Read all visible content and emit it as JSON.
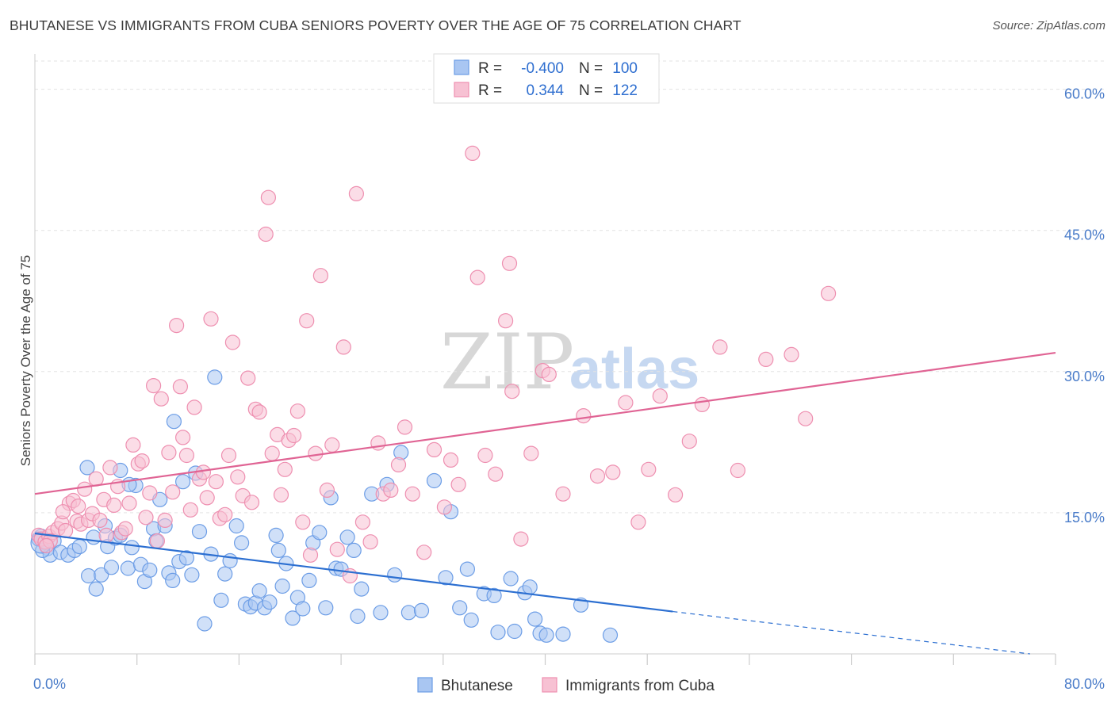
{
  "header": {
    "title": "BHUTANESE VS IMMIGRANTS FROM CUBA SENIORS POVERTY OVER THE AGE OF 75 CORRELATION CHART",
    "source": "Source: ZipAtlas.com"
  },
  "watermark": {
    "zip": "ZIP",
    "atlas": "atlas"
  },
  "chart_data": {
    "type": "scatter",
    "title": "BHUTANESE VS IMMIGRANTS FROM CUBA SENIORS POVERTY OVER THE AGE OF 75 CORRELATION CHART",
    "ylabel": "Seniors Poverty Over the Age of 75",
    "xlim": [
      0,
      80
    ],
    "ylim": [
      0,
      63
    ],
    "x_tick_labels": [
      {
        "value": 0,
        "label": "0.0%"
      },
      {
        "value": 80,
        "label": "80.0%"
      }
    ],
    "y_tick_labels": [
      {
        "value": 15,
        "label": "15.0%"
      },
      {
        "value": 30,
        "label": "30.0%"
      },
      {
        "value": 45,
        "label": "45.0%"
      },
      {
        "value": 60,
        "label": "60.0%"
      }
    ],
    "grid": "horizontal dashed",
    "legend": {
      "placement": "top-center",
      "entries": [
        {
          "r_label": "R =",
          "r_value": "-0.400",
          "n_label": "N =",
          "n_value": "100"
        },
        {
          "r_label": "R =",
          "r_value": "0.344",
          "n_label": "N =",
          "n_value": "122"
        }
      ]
    },
    "bottom_legend": [
      "Bhutanese",
      "Immigrants from Cuba"
    ],
    "series": [
      {
        "name": "Bhutanese",
        "color": "#6c9de6",
        "fill": "#a9c6f2",
        "line_color": "#2c6fd1",
        "trend": {
          "x0": 0,
          "y0": 12.8,
          "x1": 50,
          "y1": 4.5,
          "dash_to_x": 78,
          "dash_to_y": 0
        },
        "points": [
          [
            0.5,
            12.5
          ],
          [
            0.8,
            11.8
          ],
          [
            1.0,
            11.2
          ],
          [
            1.2,
            10.5
          ],
          [
            1.5,
            12.0
          ],
          [
            0.3,
            12.2
          ],
          [
            0.6,
            11.0
          ],
          [
            2.0,
            10.8
          ],
          [
            2.6,
            10.5
          ],
          [
            3.1,
            11.0
          ],
          [
            3.5,
            11.4
          ],
          [
            4.2,
            8.3
          ],
          [
            4.6,
            12.4
          ],
          [
            4.8,
            6.9
          ],
          [
            5.2,
            8.4
          ],
          [
            5.7,
            11.4
          ],
          [
            5.5,
            13.6
          ],
          [
            6.0,
            9.2
          ],
          [
            6.3,
            12.3
          ],
          [
            6.7,
            12.6
          ],
          [
            7.3,
            9.1
          ],
          [
            7.6,
            11.3
          ],
          [
            7.9,
            17.9
          ],
          [
            8.3,
            9.5
          ],
          [
            8.6,
            7.7
          ],
          [
            9.0,
            8.9
          ],
          [
            9.3,
            13.3
          ],
          [
            9.5,
            12.0
          ],
          [
            9.8,
            16.4
          ],
          [
            10.2,
            13.6
          ],
          [
            10.5,
            8.6
          ],
          [
            10.8,
            7.8
          ],
          [
            11.3,
            9.8
          ],
          [
            11.6,
            18.3
          ],
          [
            11.9,
            10.2
          ],
          [
            12.3,
            8.4
          ],
          [
            12.6,
            19.2
          ],
          [
            12.9,
            13.0
          ],
          [
            13.3,
            3.2
          ],
          [
            13.8,
            10.6
          ],
          [
            14.1,
            29.4
          ],
          [
            14.6,
            5.7
          ],
          [
            14.9,
            8.5
          ],
          [
            15.3,
            9.9
          ],
          [
            15.8,
            13.6
          ],
          [
            16.2,
            11.8
          ],
          [
            16.5,
            5.3
          ],
          [
            16.9,
            5.0
          ],
          [
            17.3,
            5.4
          ],
          [
            17.6,
            6.7
          ],
          [
            18.0,
            4.9
          ],
          [
            18.4,
            5.5
          ],
          [
            18.9,
            12.6
          ],
          [
            19.1,
            11.0
          ],
          [
            19.4,
            7.2
          ],
          [
            19.7,
            9.6
          ],
          [
            20.2,
            3.8
          ],
          [
            20.6,
            6.0
          ],
          [
            21.0,
            4.8
          ],
          [
            21.5,
            7.8
          ],
          [
            21.8,
            11.8
          ],
          [
            22.3,
            12.9
          ],
          [
            22.8,
            4.9
          ],
          [
            23.2,
            16.6
          ],
          [
            23.6,
            9.1
          ],
          [
            24.0,
            9.0
          ],
          [
            24.5,
            12.4
          ],
          [
            25.0,
            11.0
          ],
          [
            25.3,
            4.0
          ],
          [
            25.6,
            6.9
          ],
          [
            26.4,
            17.0
          ],
          [
            27.1,
            4.4
          ],
          [
            27.6,
            18.0
          ],
          [
            28.2,
            8.4
          ],
          [
            28.7,
            21.4
          ],
          [
            29.3,
            4.4
          ],
          [
            30.3,
            4.6
          ],
          [
            31.3,
            18.4
          ],
          [
            32.2,
            8.1
          ],
          [
            32.6,
            15.1
          ],
          [
            33.3,
            4.9
          ],
          [
            33.9,
            9.0
          ],
          [
            34.2,
            3.6
          ],
          [
            35.2,
            6.4
          ],
          [
            36.0,
            6.2
          ],
          [
            36.3,
            2.3
          ],
          [
            37.3,
            8.0
          ],
          [
            37.6,
            2.4
          ],
          [
            38.4,
            6.5
          ],
          [
            38.8,
            7.1
          ],
          [
            39.2,
            3.7
          ],
          [
            39.6,
            2.2
          ],
          [
            40.1,
            2.0
          ],
          [
            41.4,
            2.1
          ],
          [
            42.8,
            5.2
          ],
          [
            45.1,
            2.0
          ],
          [
            6.7,
            19.5
          ],
          [
            10.9,
            24.7
          ],
          [
            4.1,
            19.8
          ],
          [
            7.4,
            18.0
          ]
        ]
      },
      {
        "name": "Immigrants from Cuba",
        "color": "#ee8fb0",
        "fill": "#f7c1d3",
        "line_color": "#e06494",
        "trend": {
          "x0": 0,
          "y0": 17.0,
          "x1": 80,
          "y1": 32.0
        },
        "points": [
          [
            0.3,
            12.6
          ],
          [
            0.5,
            12.2
          ],
          [
            0.8,
            11.9
          ],
          [
            1.1,
            12.5
          ],
          [
            1.4,
            12.9
          ],
          [
            1.8,
            13.3
          ],
          [
            2.1,
            13.9
          ],
          [
            2.4,
            13.1
          ],
          [
            2.7,
            16.0
          ],
          [
            3.0,
            16.3
          ],
          [
            3.3,
            14.1
          ],
          [
            3.6,
            13.8
          ],
          [
            3.9,
            17.5
          ],
          [
            4.2,
            14.2
          ],
          [
            4.5,
            14.9
          ],
          [
            4.8,
            18.6
          ],
          [
            5.1,
            14.2
          ],
          [
            5.4,
            16.4
          ],
          [
            5.6,
            12.6
          ],
          [
            5.9,
            19.8
          ],
          [
            6.2,
            15.8
          ],
          [
            6.5,
            17.8
          ],
          [
            6.8,
            12.9
          ],
          [
            7.1,
            13.3
          ],
          [
            7.4,
            16.0
          ],
          [
            7.7,
            22.2
          ],
          [
            8.1,
            20.2
          ],
          [
            8.4,
            20.5
          ],
          [
            8.7,
            14.5
          ],
          [
            9.0,
            17.1
          ],
          [
            9.3,
            28.5
          ],
          [
            9.6,
            12.0
          ],
          [
            9.9,
            27.1
          ],
          [
            10.2,
            14.2
          ],
          [
            10.5,
            21.4
          ],
          [
            10.8,
            17.2
          ],
          [
            11.1,
            34.9
          ],
          [
            11.4,
            28.4
          ],
          [
            11.6,
            23.0
          ],
          [
            11.9,
            21.1
          ],
          [
            12.2,
            15.3
          ],
          [
            12.5,
            26.2
          ],
          [
            12.9,
            18.6
          ],
          [
            13.2,
            19.3
          ],
          [
            13.5,
            16.6
          ],
          [
            13.8,
            35.6
          ],
          [
            14.2,
            18.3
          ],
          [
            14.5,
            14.4
          ],
          [
            14.9,
            14.8
          ],
          [
            15.2,
            21.1
          ],
          [
            15.5,
            33.1
          ],
          [
            15.9,
            18.8
          ],
          [
            16.3,
            16.8
          ],
          [
            16.7,
            29.3
          ],
          [
            17.0,
            16.1
          ],
          [
            17.3,
            26.0
          ],
          [
            17.6,
            25.7
          ],
          [
            18.1,
            44.6
          ],
          [
            18.3,
            48.5
          ],
          [
            18.6,
            21.3
          ],
          [
            19.0,
            23.3
          ],
          [
            19.3,
            16.9
          ],
          [
            19.6,
            19.6
          ],
          [
            19.9,
            22.7
          ],
          [
            20.3,
            23.2
          ],
          [
            20.6,
            25.8
          ],
          [
            21.0,
            14.0
          ],
          [
            21.3,
            35.4
          ],
          [
            21.6,
            10.5
          ],
          [
            22.0,
            21.3
          ],
          [
            22.4,
            40.2
          ],
          [
            22.9,
            17.4
          ],
          [
            23.3,
            22.2
          ],
          [
            23.7,
            11.1
          ],
          [
            24.2,
            32.6
          ],
          [
            24.7,
            8.3
          ],
          [
            25.2,
            48.9
          ],
          [
            25.7,
            14.0
          ],
          [
            26.3,
            11.9
          ],
          [
            26.9,
            22.4
          ],
          [
            27.3,
            17.0
          ],
          [
            27.9,
            17.4
          ],
          [
            28.5,
            20.1
          ],
          [
            29.0,
            24.1
          ],
          [
            29.6,
            17.0
          ],
          [
            30.5,
            10.8
          ],
          [
            31.3,
            21.7
          ],
          [
            32.1,
            15.6
          ],
          [
            32.6,
            20.6
          ],
          [
            33.2,
            18.0
          ],
          [
            34.3,
            53.2
          ],
          [
            34.7,
            40.0
          ],
          [
            35.3,
            21.1
          ],
          [
            36.1,
            19.1
          ],
          [
            36.9,
            35.4
          ],
          [
            37.2,
            41.5
          ],
          [
            37.4,
            27.9
          ],
          [
            38.1,
            12.2
          ],
          [
            38.9,
            21.3
          ],
          [
            39.8,
            30.1
          ],
          [
            40.3,
            29.7
          ],
          [
            41.4,
            17.0
          ],
          [
            43.0,
            25.3
          ],
          [
            44.1,
            18.9
          ],
          [
            45.3,
            19.3
          ],
          [
            46.3,
            26.7
          ],
          [
            47.3,
            14.0
          ],
          [
            48.1,
            19.6
          ],
          [
            49.0,
            27.4
          ],
          [
            50.2,
            16.9
          ],
          [
            51.3,
            22.6
          ],
          [
            52.3,
            26.5
          ],
          [
            53.7,
            32.6
          ],
          [
            55.1,
            19.5
          ],
          [
            57.3,
            31.3
          ],
          [
            59.3,
            31.8
          ],
          [
            60.4,
            25.0
          ],
          [
            62.2,
            38.3
          ],
          [
            1.2,
            12.0
          ],
          [
            2.2,
            15.1
          ],
          [
            0.9,
            11.5
          ],
          [
            3.4,
            15.7
          ]
        ]
      }
    ]
  }
}
